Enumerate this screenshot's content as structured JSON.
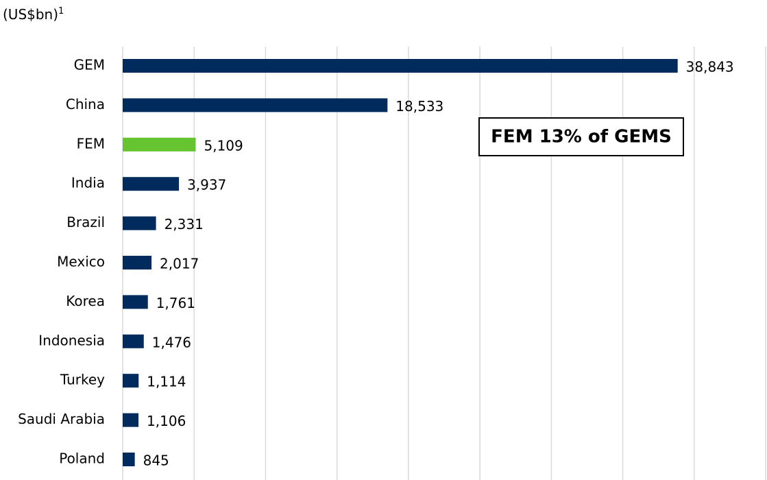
{
  "chart_data": {
    "type": "barh",
    "y_label": "(US$bn)",
    "y_label_note": "1",
    "annotation": "FEM 13% of GEMS",
    "categories": [
      "GEM",
      "China",
      "FEM",
      "India",
      "Brazil",
      "Mexico",
      "Korea",
      "Indonesia",
      "Turkey",
      "Saudi Arabia",
      "Poland"
    ],
    "values": [
      38843,
      18533,
      5109,
      3937,
      2331,
      2017,
      1761,
      1476,
      1114,
      1106,
      845
    ],
    "value_labels": [
      "38,843",
      "18,533",
      "5,109",
      "3,937",
      "2,331",
      "2,017",
      "1,761",
      "1,476",
      "1,114",
      "1,106",
      "845"
    ],
    "colors": [
      "#002b5c",
      "#002b5c",
      "#66c430",
      "#002b5c",
      "#002b5c",
      "#002b5c",
      "#002b5c",
      "#002b5c",
      "#002b5c",
      "#002b5c",
      "#002b5c"
    ],
    "xlim": [
      0,
      45000
    ],
    "xticks": [
      0,
      5000,
      10000,
      15000,
      20000,
      25000,
      30000,
      35000,
      40000,
      45000
    ],
    "grid": true
  }
}
